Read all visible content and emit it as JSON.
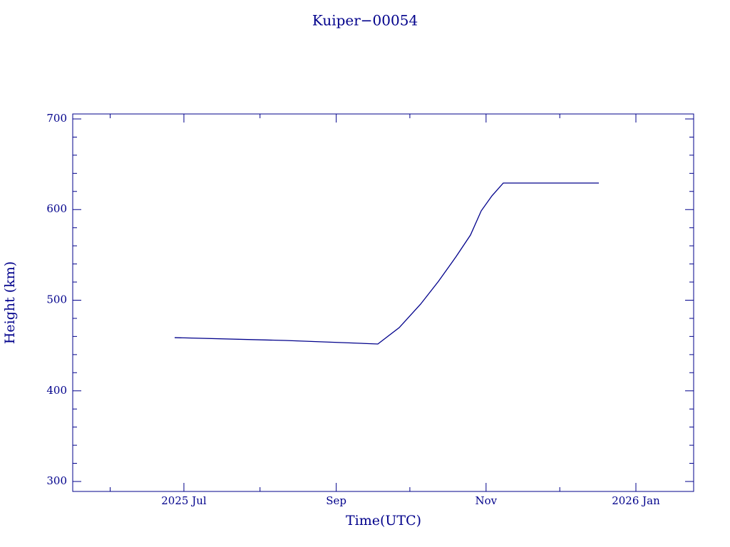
{
  "chart_data": {
    "type": "line",
    "title": "Kuiper−00054",
    "x_label": "Time(UTC)",
    "y_label": "Height (km)",
    "color": "#00008b",
    "xlim": [
      2025.3719,
      2026.0644
    ],
    "xticks": [
      {
        "value": 2025.4959,
        "label": "2025 Jul"
      },
      {
        "value": 2025.6658,
        "label": "Sep"
      },
      {
        "value": 2025.8329,
        "label": "Nov"
      },
      {
        "value": 2026.0,
        "label": "2026 Jan"
      }
    ],
    "xminorticks": [
      2025.4137,
      2025.5808,
      2025.7479,
      2025.9151
    ],
    "ylim": [
      289,
      705.5
    ],
    "yticks": [
      300,
      400,
      500,
      600,
      700
    ],
    "yminorticks": [
      320,
      340,
      360,
      380,
      420,
      440,
      460,
      480,
      520,
      540,
      560,
      580,
      620,
      640,
      660,
      680
    ],
    "x": [
      2025.4856,
      2025.6088,
      2025.7122,
      2025.736,
      2025.7599,
      2025.7798,
      2025.7996,
      2025.8155,
      2025.8275,
      2025.8394,
      2025.8521,
      2025.9587
    ],
    "values": [
      458.7,
      455.6,
      451.7,
      469.7,
      495.7,
      520.8,
      548.3,
      571.9,
      598.6,
      615.1,
      629.3,
      629.3
    ]
  }
}
